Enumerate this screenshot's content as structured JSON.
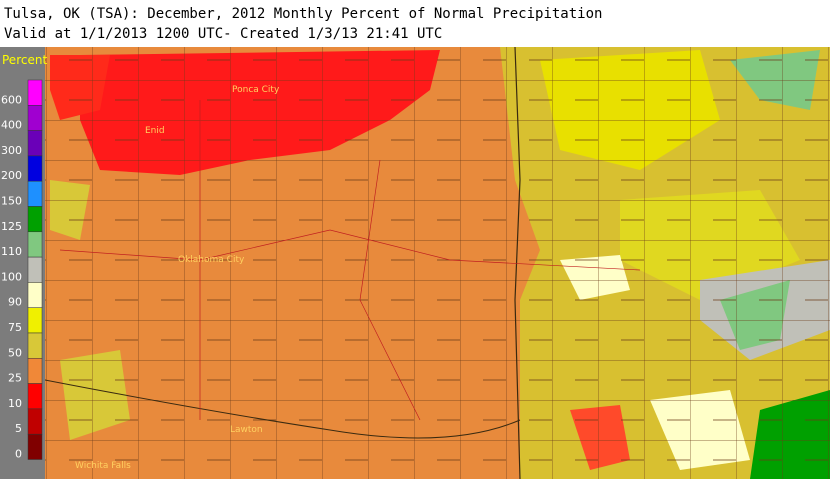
{
  "header": {
    "line1": "Tulsa, OK (TSA): December, 2012 Monthly Percent of Normal Precipitation",
    "line2": "Valid at 1/1/2013 1200 UTC- Created 1/3/13 21:41 UTC"
  },
  "legend": {
    "title": "Percent",
    "entries": [
      {
        "label": "600",
        "color": "#ff00ff"
      },
      {
        "label": "400",
        "color": "#a000d0"
      },
      {
        "label": "300",
        "color": "#6a00b8"
      },
      {
        "label": "200",
        "color": "#0000e0"
      },
      {
        "label": "150",
        "color": "#1e90ff"
      },
      {
        "label": "125",
        "color": "#00a000"
      },
      {
        "label": "110",
        "color": "#80c880"
      },
      {
        "label": "100",
        "color": "#c0c0b8"
      },
      {
        "label": "90",
        "color": "#ffffc8"
      },
      {
        "label": "75",
        "color": "#f0f000"
      },
      {
        "label": "50",
        "color": "#d8c838"
      },
      {
        "label": "25",
        "color": "#f08838"
      },
      {
        "label": "10",
        "color": "#ff0000"
      },
      {
        "label": "5",
        "color": "#c00000"
      },
      {
        "label": "0",
        "color": "#800000"
      }
    ]
  },
  "cities": [
    {
      "name": "Ponca City"
    },
    {
      "name": "Enid"
    },
    {
      "name": "Oklahoma City"
    },
    {
      "name": "Lawton"
    },
    {
      "name": "Wichita Falls"
    }
  ]
}
